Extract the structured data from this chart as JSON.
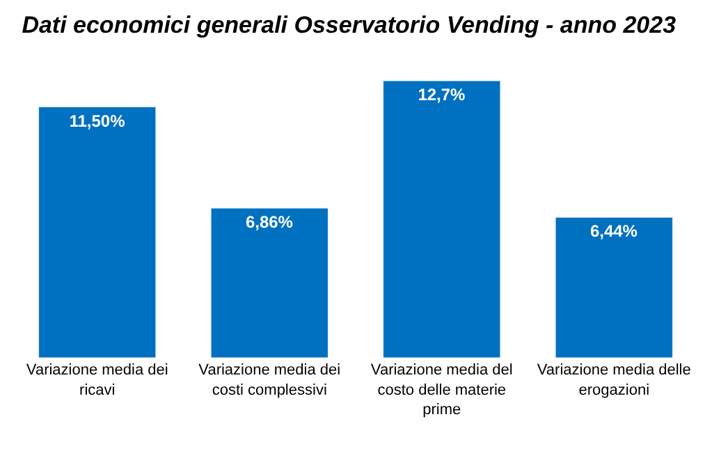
{
  "chart_data": {
    "type": "bar",
    "title": "Dati economici generali Osservatorio Vending - anno 2023",
    "categories": [
      "Variazione media dei ricavi",
      "Variazione media dei costi complessivi",
      "Variazione media del costo delle materie prime",
      "Variazione media delle erogazioni"
    ],
    "values": [
      11.5,
      6.86,
      12.7,
      6.44
    ],
    "value_labels": [
      "11,50%",
      "6,86%",
      "12,7%",
      "6,44%"
    ],
    "color": "#0070c0"
  }
}
